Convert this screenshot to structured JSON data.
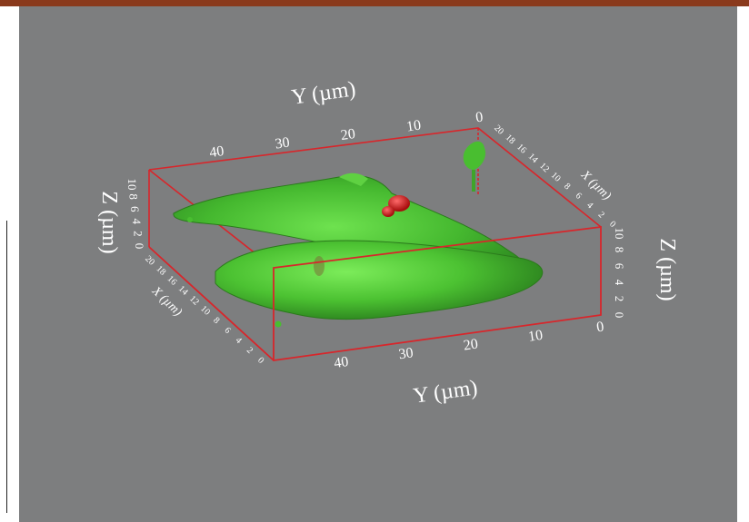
{
  "figure": {
    "axis_titles": {
      "y_top": "Y (µm)",
      "y_bottom": "Y (µm)",
      "z_left": "Z (µm)",
      "z_right": "Z (µm)",
      "x_left": "X (µm)",
      "x_right": "X (µm)"
    },
    "y_top_ticks": [
      "40",
      "30",
      "20",
      "10",
      "0"
    ],
    "y_bottom_ticks": [
      "40",
      "30",
      "20",
      "10",
      "0"
    ],
    "z_left_ticks": [
      "10",
      "8",
      "6",
      "4",
      "2",
      "0"
    ],
    "z_right_ticks": [
      "10",
      "8",
      "6",
      "4",
      "2",
      "0"
    ],
    "x_left_ticks": [
      "0",
      "2",
      "4",
      "6",
      "8",
      "10",
      "12",
      "14",
      "16",
      "18",
      "20"
    ],
    "x_right_ticks": [
      "0",
      "2",
      "4",
      "6",
      "8",
      "10",
      "12",
      "14",
      "16",
      "18",
      "20"
    ]
  },
  "colors": {
    "background": "#7d7e7f",
    "box_edges": "#d8262b",
    "cell_green": "#4fc936",
    "red_marker": "#d01818",
    "top_bar": "#8a3a1c"
  }
}
